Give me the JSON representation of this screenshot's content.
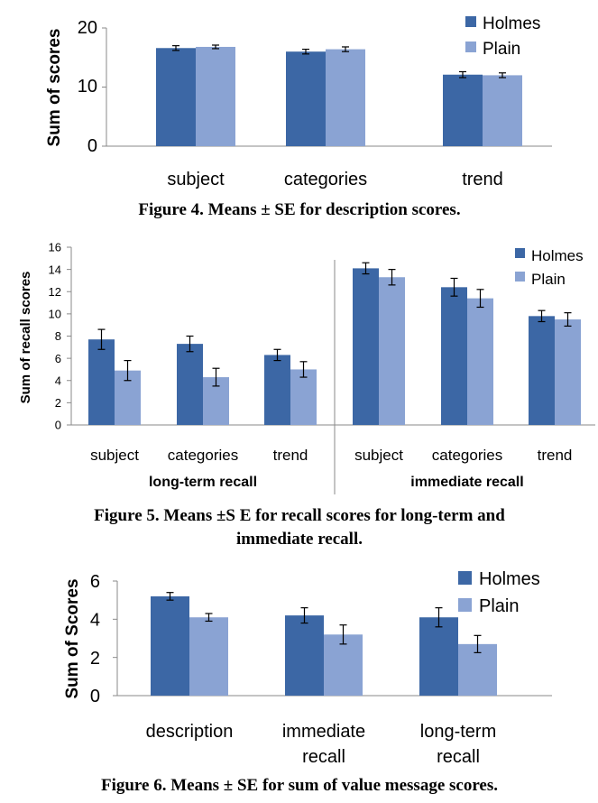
{
  "colors": {
    "holmes": "#3c67a5",
    "plain": "#8aa3d3"
  },
  "chart_data": [
    {
      "type": "bar",
      "caption": "Figure 4. Means ± SE for description scores.",
      "ylabel": "Sum of scores",
      "ylim": [
        0,
        20
      ],
      "yticks": [
        "0",
        "10",
        "20"
      ],
      "categories": [
        "subject",
        "categories",
        "trend"
      ],
      "legend": "top-right",
      "series": [
        {
          "name": "Holmes",
          "values": [
            16.6,
            16.0,
            12.1
          ],
          "se": [
            0.4,
            0.4,
            0.5
          ]
        },
        {
          "name": "Plain",
          "values": [
            16.8,
            16.4,
            12.0
          ],
          "se": [
            0.3,
            0.4,
            0.4
          ]
        }
      ]
    },
    {
      "type": "bar",
      "caption": "Figure 5. Means ±S E for recall scores for long-term and immediate recall.",
      "caption_lines": [
        "Figure 5. Means ±S E for recall scores for long-term and",
        "immediate recall."
      ],
      "ylabel": "Sum of recall scores",
      "ylim": [
        0,
        16
      ],
      "yticks": [
        "0",
        "2",
        "4",
        "6",
        "8",
        "10",
        "12",
        "14",
        "16"
      ],
      "categories": [
        "subject",
        "categories",
        "trend",
        "subject",
        "categories",
        "trend"
      ],
      "groups": [
        {
          "label": "long-term recall",
          "categories": [
            0,
            1,
            2
          ]
        },
        {
          "label": "immediate recall",
          "categories": [
            3,
            4,
            5
          ]
        }
      ],
      "legend": "top-right",
      "series": [
        {
          "name": "Holmes",
          "values": [
            7.7,
            7.3,
            6.3,
            14.1,
            12.4,
            9.8
          ],
          "se": [
            0.9,
            0.7,
            0.5,
            0.5,
            0.8,
            0.5
          ]
        },
        {
          "name": "Plain",
          "values": [
            4.9,
            4.3,
            5.0,
            13.3,
            11.4,
            9.5
          ],
          "se": [
            0.9,
            0.8,
            0.7,
            0.7,
            0.8,
            0.6
          ]
        }
      ]
    },
    {
      "type": "bar",
      "caption": "Figure 6. Means ± SE for sum of value message scores.",
      "ylabel": "Sum of Scores",
      "ylim": [
        0,
        6
      ],
      "yticks": [
        "0",
        "2",
        "4",
        "6"
      ],
      "categories": [
        "description",
        "immediate recall",
        "long-term recall"
      ],
      "category_lines": [
        [
          "description"
        ],
        [
          "immediate",
          "recall"
        ],
        [
          "long-term",
          "recall"
        ]
      ],
      "legend": "top-right",
      "series": [
        {
          "name": "Holmes",
          "values": [
            5.2,
            4.2,
            4.1
          ],
          "se": [
            0.2,
            0.4,
            0.5
          ]
        },
        {
          "name": "Plain",
          "values": [
            4.1,
            3.2,
            2.7
          ],
          "se": [
            0.2,
            0.5,
            0.45
          ]
        }
      ]
    }
  ]
}
